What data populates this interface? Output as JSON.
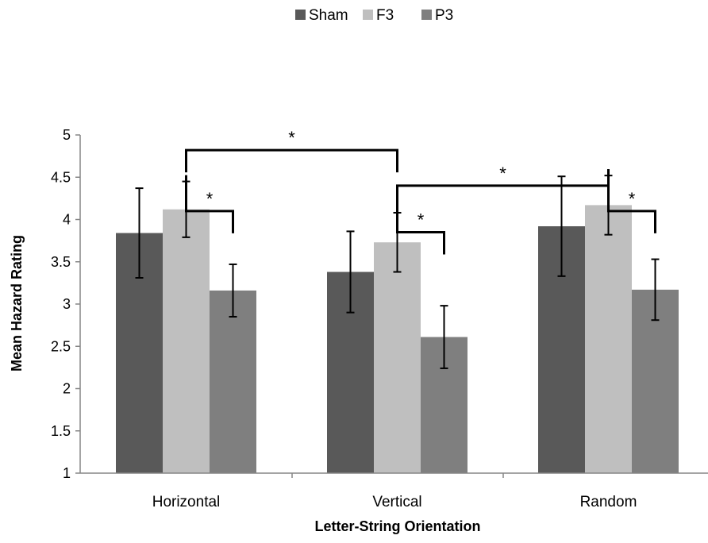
{
  "chart_data": {
    "type": "bar",
    "title": "",
    "xlabel": "Letter-String Orientation",
    "ylabel": "Mean Hazard Rating",
    "ylim": [
      1,
      5
    ],
    "yticks": [
      1,
      1.5,
      2,
      2.5,
      3,
      3.5,
      4,
      4.5,
      5
    ],
    "ytick_labels": [
      "1",
      "1.5",
      "2",
      "2.5",
      "3",
      "3.5",
      "4",
      "4.5",
      "5"
    ],
    "grid": false,
    "legend_position": "top-center",
    "categories": [
      "Horizontal",
      "Vertical",
      "Random"
    ],
    "series": [
      {
        "name": "Sham",
        "color": "#595959",
        "values": [
          3.84,
          3.38,
          3.92
        ],
        "errors": [
          0.53,
          0.48,
          0.59
        ]
      },
      {
        "name": "F3",
        "color": "#bfbfbf",
        "values": [
          4.12,
          3.73,
          4.17
        ],
        "errors": [
          0.33,
          0.35,
          0.35
        ]
      },
      {
        "name": "P3",
        "color": "#7f7f7f",
        "values": [
          3.16,
          2.61,
          3.17
        ],
        "errors": [
          0.31,
          0.37,
          0.36
        ]
      }
    ],
    "significance": [
      {
        "label": "*",
        "from": [
          0,
          1
        ],
        "to": [
          1,
          1
        ],
        "level": 4.82
      },
      {
        "label": "*",
        "from": [
          1,
          1
        ],
        "to": [
          2,
          1
        ],
        "level": 4.4
      },
      {
        "label": "*",
        "from": [
          0,
          1
        ],
        "to": [
          0,
          2
        ],
        "level": 4.1
      },
      {
        "label": "*",
        "from": [
          1,
          1
        ],
        "to": [
          1,
          2
        ],
        "level": 3.85
      },
      {
        "label": "*",
        "from": [
          2,
          1
        ],
        "to": [
          2,
          2
        ],
        "level": 4.1
      }
    ]
  }
}
